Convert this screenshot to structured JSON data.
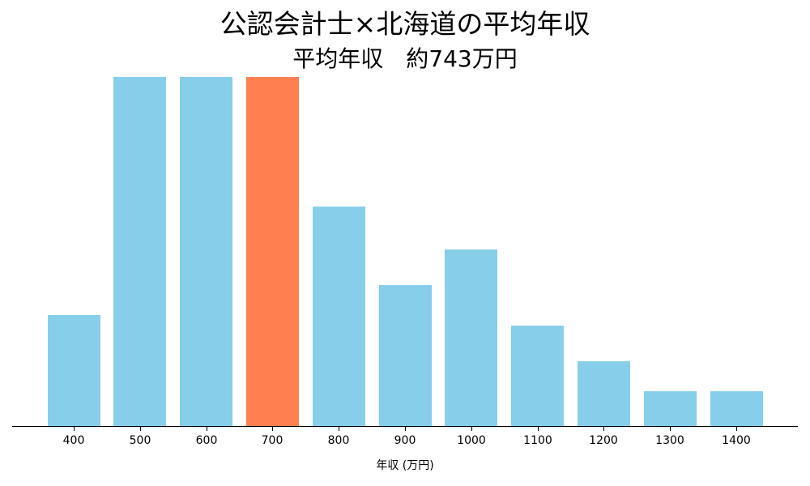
{
  "chart_data": {
    "type": "bar",
    "title": "公認会計士×北海道の平均年収",
    "subtitle": "平均年収　約743万円",
    "xlabel": "年収 (万円)",
    "ylabel": "",
    "categories": [
      "400",
      "500",
      "600",
      "700",
      "800",
      "900",
      "1000",
      "1100",
      "1200",
      "1300",
      "1400"
    ],
    "values": [
      3.2,
      10.0,
      10.0,
      10.0,
      6.3,
      4.05,
      5.07,
      2.9,
      1.87,
      1.02,
      1.02
    ],
    "ylim": [
      0,
      10.0
    ],
    "highlight_category": "700",
    "colors": {
      "default": "#87CEEB",
      "highlight": "#FF7F50",
      "axis": "#000000"
    },
    "grid": false,
    "legend": null,
    "y_axis_visible": false
  }
}
